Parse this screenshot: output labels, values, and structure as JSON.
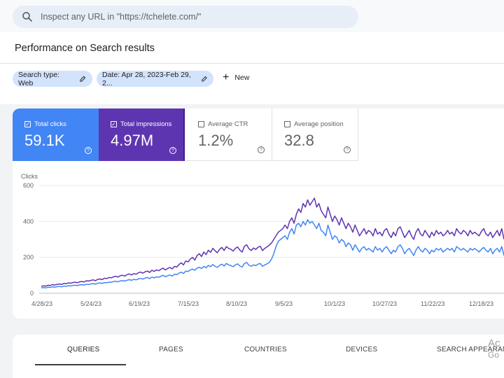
{
  "search": {
    "placeholder": "Inspect any URL in \"https://tchelete.com/\""
  },
  "page_title": "Performance on Search results",
  "filters": {
    "chips": [
      {
        "label": "Search type: Web"
      },
      {
        "label": "Date: Apr 28, 2023-Feb 29, 2..."
      }
    ],
    "new_label": "New"
  },
  "metrics": [
    {
      "label": "Total clicks",
      "value": "59.1K",
      "checked": true,
      "color": "#4285f4"
    },
    {
      "label": "Total impressions",
      "value": "4.97M",
      "checked": true,
      "color": "#5e35b1"
    },
    {
      "label": "Average CTR",
      "value": "1.2%",
      "checked": false
    },
    {
      "label": "Average position",
      "value": "32.8",
      "checked": false
    }
  ],
  "chart_data": {
    "type": "line",
    "ylabel": "Clicks",
    "y_ticks": [
      "600",
      "400",
      "200",
      "0"
    ],
    "ylim": [
      0,
      600
    ],
    "x_ticks": [
      "4/28/23",
      "5/24/23",
      "6/19/23",
      "7/15/23",
      "8/10/23",
      "9/5/23",
      "10/1/23",
      "10/27/23",
      "11/22/23",
      "12/18/23"
    ],
    "series": [
      {
        "color": "#5e35b1",
        "values": [
          38,
          42,
          40,
          45,
          44,
          48,
          46,
          50,
          52,
          49,
          55,
          53,
          58,
          56,
          60,
          62,
          59,
          64,
          66,
          63,
          70,
          68,
          72,
          75,
          70,
          78,
          80,
          76,
          84,
          82,
          88,
          86,
          92,
          95,
          90,
          98,
          100,
          96,
          104,
          108,
          102,
          110,
          106,
          114,
          118,
          112,
          120,
          124,
          116,
          128,
          122,
          130,
          126,
          134,
          140,
          130,
          138,
          144,
          136,
          150,
          146,
          160,
          170,
          158,
          180,
          175,
          190,
          200,
          185,
          210,
          220,
          205,
          230,
          215,
          240,
          228,
          250,
          236,
          226,
          245,
          255,
          238,
          260,
          250,
          245,
          235,
          250,
          258,
          240,
          230,
          262,
          270,
          248,
          238,
          252,
          244,
          256,
          262,
          238,
          250,
          258,
          268,
          280,
          300,
          320,
          340,
          350,
          360,
          380,
          360,
          400,
          420,
          390,
          440,
          470,
          450,
          500,
          480,
          520,
          490,
          510,
          530,
          480,
          500,
          460,
          440,
          420,
          480,
          440,
          400,
          430,
          410,
          380,
          420,
          390,
          360,
          390,
          370,
          340,
          380,
          350,
          320,
          340,
          360,
          330,
          350,
          340,
          320,
          360,
          330,
          340,
          320,
          350,
          360,
          330,
          310,
          340,
          320,
          360,
          370,
          340,
          310,
          330,
          350,
          320,
          300,
          340,
          360,
          330,
          320,
          350,
          330,
          310,
          340,
          320,
          350,
          330,
          340,
          320,
          330,
          350,
          330,
          340,
          320,
          360,
          340,
          330,
          350,
          340,
          320,
          350,
          330,
          340,
          330,
          320,
          345,
          360,
          330,
          320,
          340,
          310,
          330,
          350,
          320,
          360,
          300
        ]
      },
      {
        "color": "#4285f4",
        "values": [
          30,
          32,
          30,
          34,
          33,
          36,
          34,
          37,
          38,
          36,
          40,
          39,
          42,
          41,
          44,
          45,
          43,
          47,
          48,
          46,
          50,
          49,
          52,
          54,
          51,
          56,
          58,
          55,
          60,
          59,
          62,
          61,
          65,
          67,
          64,
          69,
          70,
          68,
          73,
          76,
          72,
          78,
          75,
          80,
          83,
          79,
          85,
          88,
          82,
          90,
          86,
          92,
          89,
          95,
          100,
          92,
          98,
          102,
          96,
          106,
          104,
          112,
          118,
          110,
          124,
          121,
          130,
          135,
          128,
          140,
          145,
          138,
          150,
          142,
          155,
          148,
          160,
          150,
          144,
          156,
          162,
          152,
          166,
          158,
          154,
          148,
          158,
          164,
          152,
          146,
          166,
          172,
          156,
          150,
          158,
          154,
          162,
          166,
          150,
          158,
          164,
          172,
          190,
          220,
          260,
          290,
          300,
          310,
          320,
          300,
          340,
          360,
          330,
          380,
          390,
          370,
          400,
          380,
          410,
          390,
          400,
          380,
          360,
          390,
          350,
          340,
          320,
          380,
          340,
          300,
          320,
          310,
          280,
          300,
          290,
          260,
          280,
          270,
          240,
          270,
          250,
          230,
          250,
          260,
          240,
          250,
          240,
          230,
          260,
          240,
          250,
          230,
          250,
          260,
          240,
          220,
          240,
          230,
          260,
          270,
          250,
          220,
          240,
          250,
          230,
          210,
          240,
          260,
          240,
          230,
          250,
          240,
          220,
          240,
          230,
          250,
          240,
          250,
          230,
          240,
          250,
          240,
          250,
          230,
          260,
          250,
          240,
          250,
          240,
          230,
          250,
          240,
          250,
          240,
          230,
          245,
          255,
          240,
          230,
          250,
          220,
          240,
          250,
          230,
          260,
          210
        ]
      }
    ]
  },
  "tabs": [
    {
      "label": "QUERIES",
      "active": true
    },
    {
      "label": "PAGES"
    },
    {
      "label": "COUNTRIES"
    },
    {
      "label": "DEVICES"
    },
    {
      "label": "SEARCH APPEARANCE"
    }
  ],
  "activate_line1": "Ac",
  "activate_line2": "Go"
}
